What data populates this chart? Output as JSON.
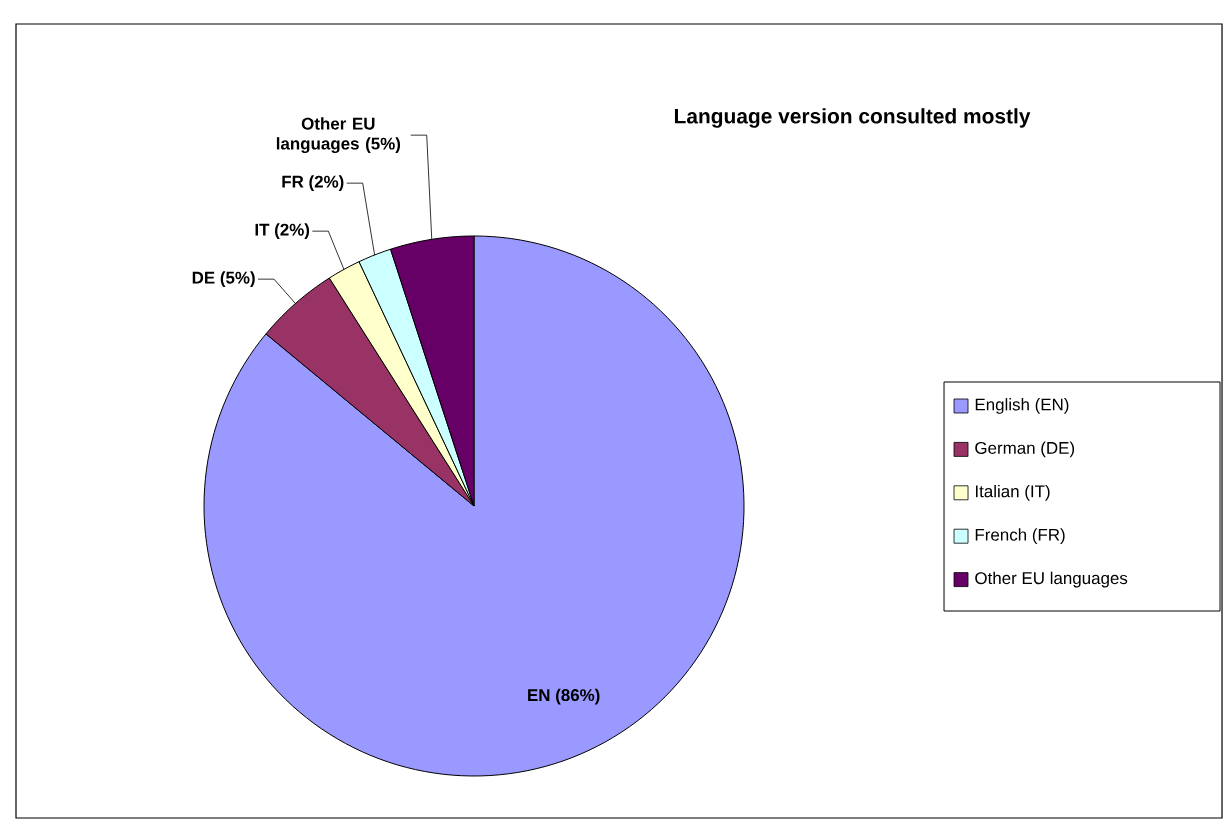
{
  "chart_data": {
    "type": "pie",
    "title": "Language version consulted mostly",
    "categories": [
      "English (EN)",
      "German (DE)",
      "Italian (IT)",
      "French (FR)",
      "Other EU languages"
    ],
    "values": [
      86,
      5,
      2,
      2,
      5
    ],
    "colors": [
      "#9999ff",
      "#993366",
      "#ffffcc",
      "#ccffff",
      "#660066"
    ],
    "value_labels": [
      "EN (86%)",
      "DE (5%)",
      "IT (2%)",
      "FR (2%)",
      "Other EU languages (5%)"
    ],
    "legend": "right"
  }
}
